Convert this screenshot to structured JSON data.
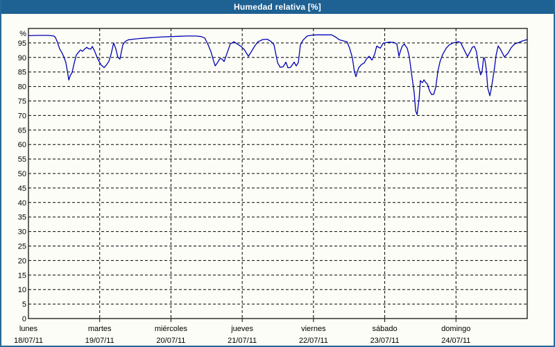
{
  "window": {
    "title": "Humedad relativa [%]",
    "titlebar_color": "#1e6193",
    "border_color": "#26689a",
    "background_color": "#fcfdf6"
  },
  "chart_data": {
    "type": "line",
    "title": "Humedad relativa [%]",
    "legend": "none",
    "grid": {
      "style": "dashed",
      "color": "#000000",
      "axis_color": "#000000"
    },
    "y_axis": {
      "unit_label": "%",
      "min": 0,
      "max": 100,
      "tick_step": 5,
      "ticks": [
        0,
        5,
        10,
        15,
        20,
        25,
        30,
        35,
        40,
        45,
        50,
        55,
        60,
        65,
        70,
        75,
        80,
        85,
        90,
        95
      ]
    },
    "x_axis": {
      "hours_total": 168,
      "days": [
        {
          "name": "lunes",
          "date": "18/07/11"
        },
        {
          "name": "martes",
          "date": "19/07/11"
        },
        {
          "name": "miércoles",
          "date": "20/07/11"
        },
        {
          "name": "jueves",
          "date": "21/07/11"
        },
        {
          "name": "viernes",
          "date": "22/07/11"
        },
        {
          "name": "sábado",
          "date": "23/07/11"
        },
        {
          "name": "domingo",
          "date": "24/07/11"
        }
      ]
    },
    "series": [
      {
        "name": "Humedad relativa",
        "color": "#0000b3",
        "points": [
          [
            0.0,
            97.5
          ],
          [
            3.3,
            97.6
          ],
          [
            6.8,
            97.6
          ],
          [
            8.6,
            97.4
          ],
          [
            9.1,
            96.9
          ],
          [
            9.8,
            95.2
          ],
          [
            10.5,
            93.0
          ],
          [
            11.2,
            91.8
          ],
          [
            11.9,
            90.3
          ],
          [
            12.6,
            88.3
          ],
          [
            13.1,
            85.3
          ],
          [
            13.6,
            82.2
          ],
          [
            14.0,
            83.6
          ],
          [
            14.7,
            84.8
          ],
          [
            15.4,
            88.0
          ],
          [
            16.1,
            90.8
          ],
          [
            16.8,
            91.7
          ],
          [
            17.5,
            92.6
          ],
          [
            18.2,
            92.1
          ],
          [
            18.9,
            92.9
          ],
          [
            19.6,
            93.5
          ],
          [
            20.3,
            93.0
          ],
          [
            21.0,
            92.9
          ],
          [
            21.5,
            93.8
          ],
          [
            22.2,
            92.4
          ],
          [
            23.1,
            90.1
          ],
          [
            23.8,
            88.6
          ],
          [
            24.5,
            87.4
          ],
          [
            25.5,
            86.5
          ],
          [
            26.4,
            87.6
          ],
          [
            27.1,
            88.7
          ],
          [
            27.8,
            91.0
          ],
          [
            28.7,
            95.0
          ],
          [
            29.4,
            93.1
          ],
          [
            30.1,
            90.2
          ],
          [
            30.8,
            89.4
          ],
          [
            31.8,
            94.4
          ],
          [
            32.7,
            95.6
          ],
          [
            33.7,
            96.1
          ],
          [
            35.3,
            96.3
          ],
          [
            37.2,
            96.5
          ],
          [
            39.5,
            96.7
          ],
          [
            42.3,
            96.9
          ],
          [
            45.3,
            97.1
          ],
          [
            48.1,
            97.2
          ],
          [
            50.7,
            97.3
          ],
          [
            53.5,
            97.4
          ],
          [
            56.3,
            97.4
          ],
          [
            58.2,
            97.2
          ],
          [
            59.4,
            96.7
          ],
          [
            60.5,
            94.4
          ],
          [
            61.5,
            91.9
          ],
          [
            62.4,
            88.6
          ],
          [
            62.9,
            87.1
          ],
          [
            63.6,
            88.1
          ],
          [
            64.5,
            89.6
          ],
          [
            65.2,
            89.5
          ],
          [
            65.9,
            88.6
          ],
          [
            66.8,
            91.2
          ],
          [
            68.0,
            94.7
          ],
          [
            69.2,
            95.4
          ],
          [
            70.1,
            94.8
          ],
          [
            71.0,
            94.2
          ],
          [
            71.7,
            93.7
          ],
          [
            72.7,
            92.7
          ],
          [
            74.1,
            90.4
          ],
          [
            75.0,
            91.9
          ],
          [
            76.2,
            93.9
          ],
          [
            77.3,
            95.4
          ],
          [
            79.0,
            96.2
          ],
          [
            80.4,
            96.3
          ],
          [
            81.6,
            95.6
          ],
          [
            82.7,
            94.4
          ],
          [
            83.9,
            88.2
          ],
          [
            84.8,
            86.6
          ],
          [
            85.8,
            86.8
          ],
          [
            86.7,
            88.4
          ],
          [
            87.4,
            86.4
          ],
          [
            88.3,
            86.6
          ],
          [
            89.5,
            88.4
          ],
          [
            90.2,
            87.1
          ],
          [
            90.9,
            88.2
          ],
          [
            91.6,
            94.3
          ],
          [
            92.5,
            96.0
          ],
          [
            93.9,
            97.4
          ],
          [
            95.6,
            97.7
          ],
          [
            97.4,
            97.8
          ],
          [
            99.8,
            97.8
          ],
          [
            102.1,
            97.8
          ],
          [
            103.5,
            97.0
          ],
          [
            104.7,
            96.1
          ],
          [
            106.1,
            95.7
          ],
          [
            107.3,
            95.4
          ],
          [
            108.2,
            93.1
          ],
          [
            109.1,
            89.9
          ],
          [
            109.8,
            85.1
          ],
          [
            110.3,
            83.4
          ],
          [
            111.2,
            86.4
          ],
          [
            112.2,
            87.6
          ],
          [
            113.1,
            88.1
          ],
          [
            113.8,
            89.4
          ],
          [
            114.7,
            90.4
          ],
          [
            115.7,
            89.1
          ],
          [
            116.6,
            91.1
          ],
          [
            117.3,
            93.9
          ],
          [
            118.5,
            93.2
          ],
          [
            119.4,
            94.8
          ],
          [
            120.3,
            95.1
          ],
          [
            121.7,
            95.3
          ],
          [
            123.1,
            95.2
          ],
          [
            124.1,
            94.6
          ],
          [
            124.8,
            90.4
          ],
          [
            125.2,
            91.9
          ],
          [
            125.9,
            93.9
          ],
          [
            126.6,
            94.6
          ],
          [
            127.6,
            93.1
          ],
          [
            128.3,
            90.1
          ],
          [
            129.0,
            84.6
          ],
          [
            129.9,
            78.1
          ],
          [
            130.4,
            71.6
          ],
          [
            130.9,
            70.3
          ],
          [
            131.6,
            76.0
          ],
          [
            132.0,
            82.0
          ],
          [
            132.7,
            81.3
          ],
          [
            133.2,
            82.3
          ],
          [
            133.7,
            81.5
          ],
          [
            134.4,
            80.8
          ],
          [
            135.1,
            78.5
          ],
          [
            135.8,
            77.2
          ],
          [
            136.5,
            77.3
          ],
          [
            137.2,
            79.8
          ],
          [
            137.9,
            85.3
          ],
          [
            138.6,
            88.5
          ],
          [
            139.5,
            91.0
          ],
          [
            140.7,
            93.2
          ],
          [
            141.8,
            94.4
          ],
          [
            143.0,
            95.0
          ],
          [
            144.2,
            95.3
          ],
          [
            144.9,
            95.4
          ],
          [
            145.6,
            95.1
          ],
          [
            146.3,
            93.6
          ],
          [
            147.2,
            91.7
          ],
          [
            147.9,
            90.3
          ],
          [
            148.8,
            92.0
          ],
          [
            149.5,
            93.5
          ],
          [
            150.2,
            93.8
          ],
          [
            150.9,
            92.0
          ],
          [
            151.6,
            86.8
          ],
          [
            152.3,
            84.0
          ],
          [
            152.8,
            85.2
          ],
          [
            153.3,
            90.0
          ],
          [
            153.7,
            89.4
          ],
          [
            154.2,
            86.0
          ],
          [
            154.7,
            79.4
          ],
          [
            155.4,
            76.8
          ],
          [
            155.9,
            79.3
          ],
          [
            156.8,
            85.2
          ],
          [
            157.5,
            90.8
          ],
          [
            158.2,
            94.0
          ],
          [
            159.1,
            92.6
          ],
          [
            160.3,
            90.2
          ],
          [
            161.5,
            91.4
          ],
          [
            162.6,
            93.4
          ],
          [
            163.8,
            94.7
          ],
          [
            165.2,
            95.2
          ],
          [
            166.4,
            95.7
          ],
          [
            167.8,
            96.1
          ]
        ]
      }
    ]
  }
}
